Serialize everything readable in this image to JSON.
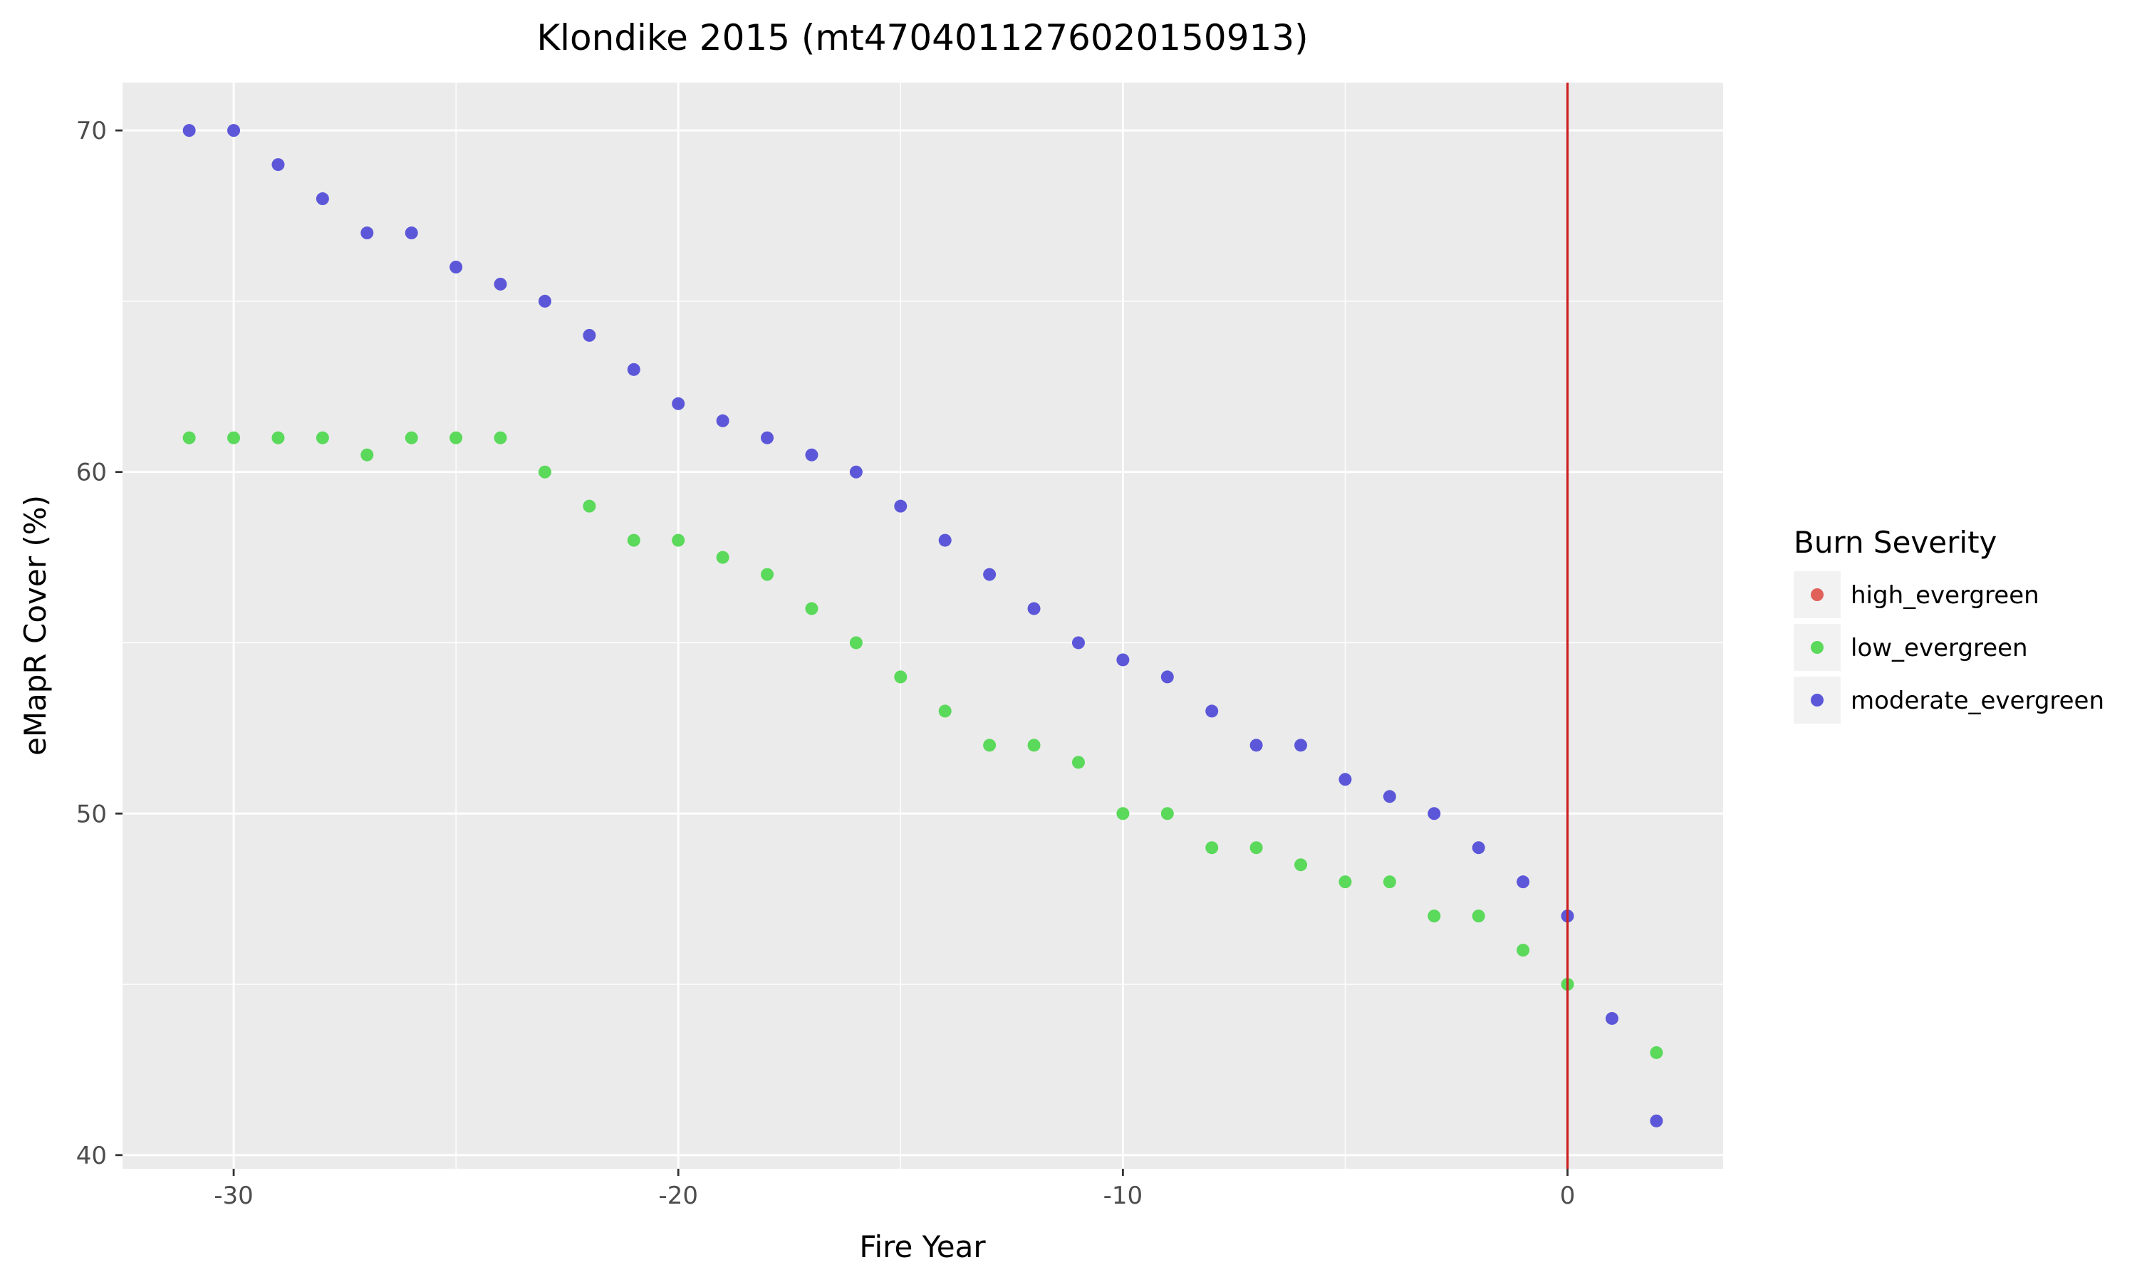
{
  "chart_data": {
    "type": "scatter",
    "title": "Klondike 2015 (mt4704011276020150913)",
    "xlabel": "Fire Year",
    "ylabel": "eMapR Cover (%)",
    "xlim": [
      -32.5,
      3.5
    ],
    "ylim": [
      39.6,
      71.4
    ],
    "x_ticks": [
      -30,
      -20,
      -10,
      0
    ],
    "y_ticks": [
      40,
      50,
      60,
      70
    ],
    "grid": true,
    "background": "#ebebeb",
    "vline": {
      "x": 0,
      "color": "#cc1f1f"
    },
    "legend": {
      "title": "Burn Severity",
      "position": "right",
      "entries": [
        {
          "label": "high_evergreen",
          "color": "#e0605a"
        },
        {
          "label": "low_evergreen",
          "color": "#5ad95a"
        },
        {
          "label": "moderate_evergreen",
          "color": "#5c57d9"
        }
      ]
    },
    "series": [
      {
        "name": "low_evergreen",
        "color": "#5ad95a",
        "x": [
          -31,
          -30,
          -29,
          -28,
          -27,
          -26,
          -25,
          -24,
          -23,
          -22,
          -21,
          -20,
          -19,
          -18,
          -17,
          -16,
          -15,
          -14,
          -13,
          -12,
          -11,
          -10,
          -9,
          -8,
          -7,
          -6,
          -5,
          -4,
          -3,
          -2,
          -1,
          0,
          2
        ],
        "y": [
          61,
          61,
          61,
          61,
          60.5,
          61,
          61,
          61,
          60,
          59,
          58,
          58,
          57.5,
          57,
          56,
          55,
          54,
          53,
          52,
          52,
          51.5,
          50,
          50,
          49,
          49,
          48.5,
          48,
          48,
          47,
          47,
          46,
          45,
          43
        ]
      },
      {
        "name": "moderate_evergreen",
        "color": "#5c57d9",
        "x": [
          -31,
          -30,
          -29,
          -28,
          -27,
          -26,
          -25,
          -24,
          -23,
          -22,
          -21,
          -20,
          -19,
          -18,
          -17,
          -16,
          -15,
          -14,
          -13,
          -12,
          -11,
          -10,
          -9,
          -8,
          -7,
          -6,
          -5,
          -4,
          -3,
          -2,
          -1,
          0,
          1,
          2
        ],
        "y": [
          70,
          70,
          69,
          68,
          67,
          67,
          66,
          65.5,
          65,
          64,
          63,
          62,
          61.5,
          61,
          60.5,
          60,
          59,
          58,
          57,
          56,
          55,
          54.5,
          54,
          53,
          52,
          52,
          51,
          50.5,
          50,
          49,
          48,
          47,
          44,
          41
        ]
      }
    ]
  }
}
